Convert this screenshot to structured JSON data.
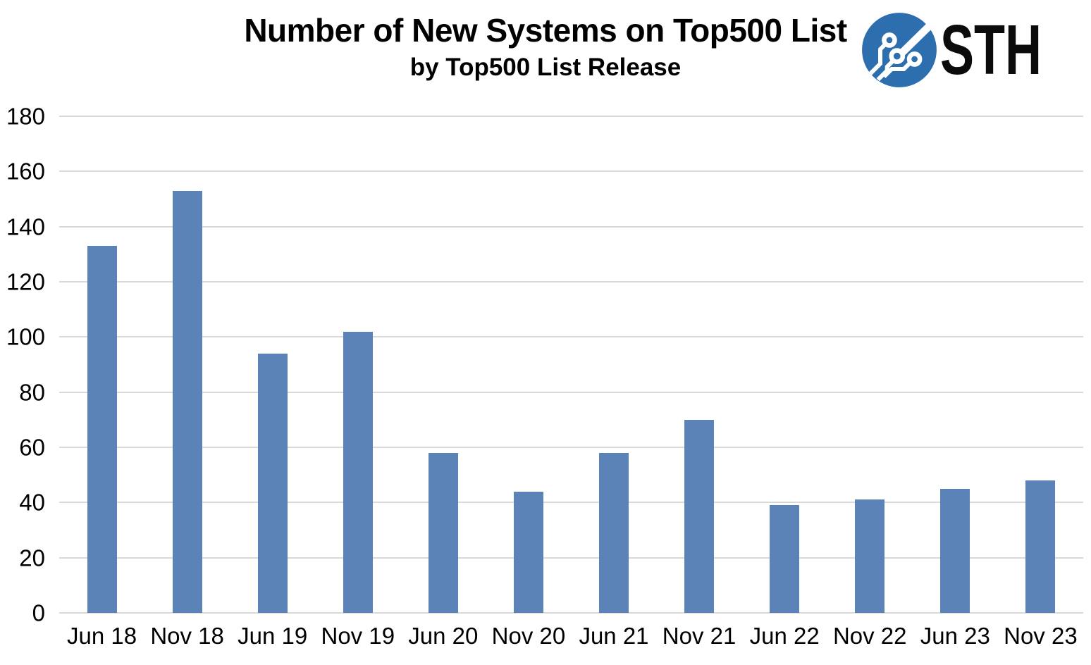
{
  "header": {
    "title": "Number of New Systems on Top500 List",
    "subtitle": "by Top500 List Release",
    "logo_text": "STH"
  },
  "chart_data": {
    "type": "bar",
    "title": "Number of New Systems on Top500 List",
    "subtitle": "by Top500 List Release",
    "categories": [
      "Jun 18",
      "Nov 18",
      "Jun 19",
      "Nov 19",
      "Jun 20",
      "Nov 20",
      "Jun 21",
      "Nov 21",
      "Jun 22",
      "Nov 22",
      "Jun 23",
      "Nov 23"
    ],
    "values": [
      133,
      153,
      94,
      102,
      58,
      44,
      58,
      70,
      39,
      41,
      45,
      48
    ],
    "xlabel": "",
    "ylabel": "",
    "ylim": [
      0,
      180
    ],
    "ytick_step": 20,
    "yticks": [
      0,
      20,
      40,
      60,
      80,
      100,
      120,
      140,
      160,
      180
    ],
    "grid": true,
    "legend_position": "none",
    "colors": {
      "bar": "#5b83b7",
      "gridline": "#d9d9d9",
      "axis_text": "#000000",
      "logo_blue": "#2d6eaf",
      "logo_text": "#0b0b0b",
      "background": "#ffffff"
    }
  }
}
